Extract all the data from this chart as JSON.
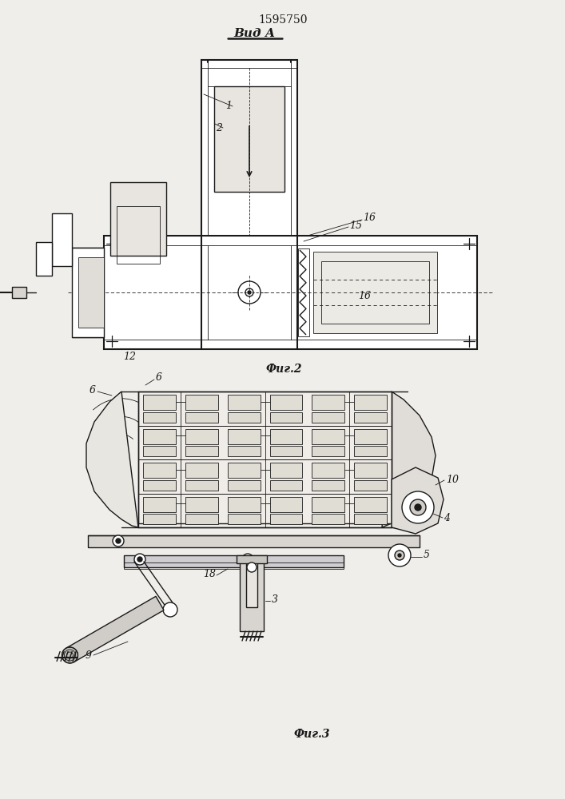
{
  "patent_number": "1595750",
  "fig2_label": "Фиг.2",
  "fig3_label": "Фиг.3",
  "vid_a_label": "Вид А",
  "bg_color": "#f0eeea",
  "lc": "#1a1a1a"
}
